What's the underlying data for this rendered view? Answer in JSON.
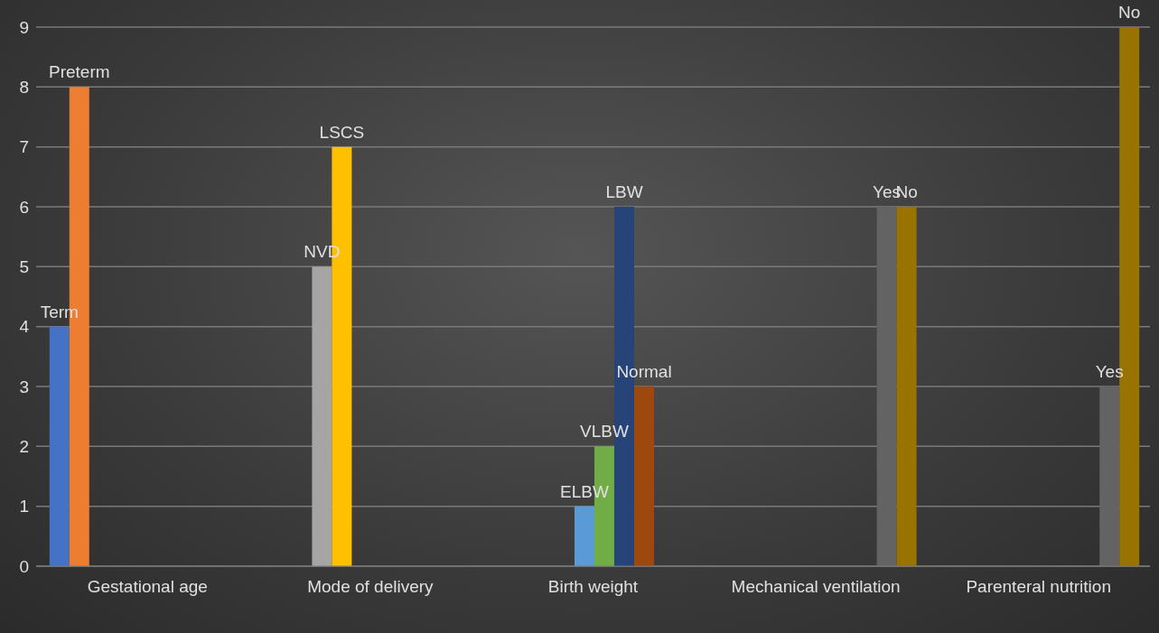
{
  "chart_data": {
    "type": "bar",
    "categories": [
      "Gestational age",
      "Mode of delivery",
      "Birth weight",
      "Mechanical ventilation",
      "Parenteral nutrition"
    ],
    "series": [
      {
        "name": "Term",
        "color": "#4472c4",
        "values": [
          4,
          null,
          null,
          null,
          null
        ]
      },
      {
        "name": "Preterm",
        "color": "#ed7d31",
        "values": [
          8,
          null,
          null,
          null,
          null
        ]
      },
      {
        "name": "NVD",
        "color": "#a5a5a5",
        "values": [
          null,
          5,
          null,
          null,
          null
        ]
      },
      {
        "name": "LSCS",
        "color": "#ffc000",
        "values": [
          null,
          7,
          null,
          null,
          null
        ]
      },
      {
        "name": "ELBW",
        "color": "#5b9bd5",
        "values": [
          null,
          null,
          1,
          null,
          null
        ]
      },
      {
        "name": "VLBW",
        "color": "#70ad47",
        "values": [
          null,
          null,
          2,
          null,
          null
        ]
      },
      {
        "name": "LBW",
        "color": "#264478",
        "values": [
          null,
          null,
          6,
          null,
          null
        ]
      },
      {
        "name": "Normal",
        "color": "#9e480e",
        "values": [
          null,
          null,
          3,
          null,
          null
        ]
      },
      {
        "name": "Yes",
        "color": "#636363",
        "values": [
          null,
          null,
          null,
          6,
          3
        ]
      },
      {
        "name": "No",
        "color": "#997300",
        "values": [
          null,
          null,
          null,
          6,
          9
        ]
      }
    ],
    "ylim": [
      0,
      9
    ],
    "yticks": [
      0,
      1,
      2,
      3,
      4,
      5,
      6,
      7,
      8,
      9
    ],
    "grid": "y",
    "legend": false
  }
}
